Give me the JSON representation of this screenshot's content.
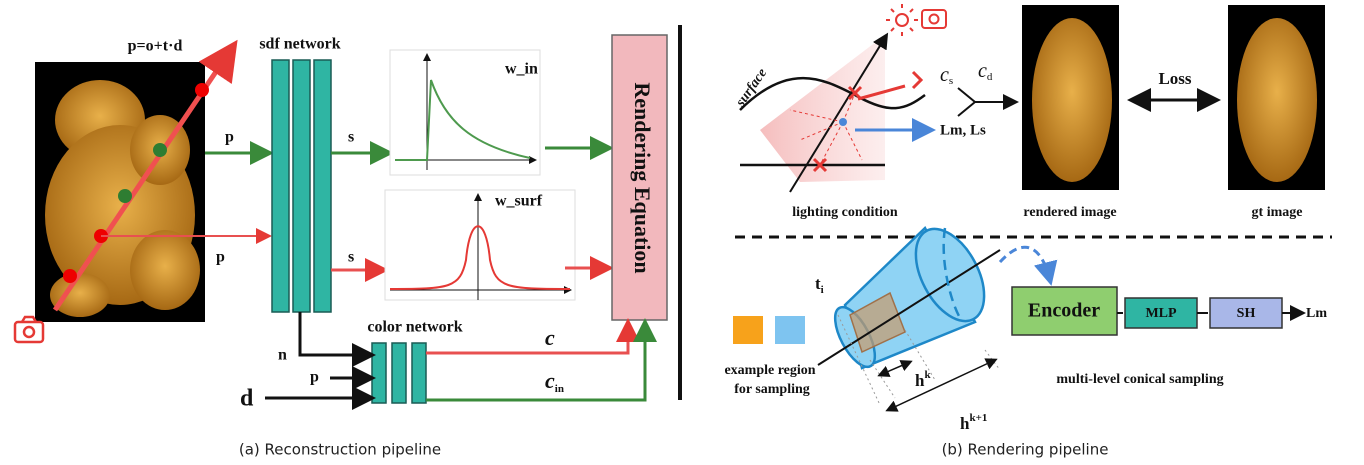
{
  "reconstruction": {
    "ray_equation": "p=o+t·d",
    "sdf_network": "sdf network",
    "input_labels": [
      "p",
      "p"
    ],
    "sdf_outputs": [
      "s",
      "s"
    ],
    "weight_functions": [
      "w_in",
      "w_surf"
    ],
    "renderer": "Rendering Equation",
    "color_network": "color network",
    "color_inputs": [
      "n",
      "p",
      "d"
    ],
    "color_outputs": [
      {
        "base": "c"
      },
      {
        "base": "c",
        "sub": "in"
      }
    ],
    "caption": "(a) Reconstruction pipeline"
  },
  "rendering": {
    "surface": "surface",
    "specular": {
      "base": "c",
      "sub": "s"
    },
    "diffuse": {
      "base": "c",
      "sub": "d"
    },
    "light_terms": "Lm, Ls",
    "loss": "Loss",
    "panel_labels": [
      "lighting condition",
      "rendered image",
      "gt image"
    ],
    "sample_point": {
      "base": "t",
      "sub": "i"
    },
    "region_label": [
      "example  region",
      "for sampling"
    ],
    "heights": [
      {
        "base": "h",
        "sup": "k"
      },
      {
        "base": "h",
        "sup": "k+1"
      }
    ],
    "sampling_label": "multi-level conical sampling",
    "modules": [
      "Encoder",
      "MLP",
      "SH"
    ],
    "output": "Lm",
    "caption": "(b) Rendering pipeline"
  }
}
